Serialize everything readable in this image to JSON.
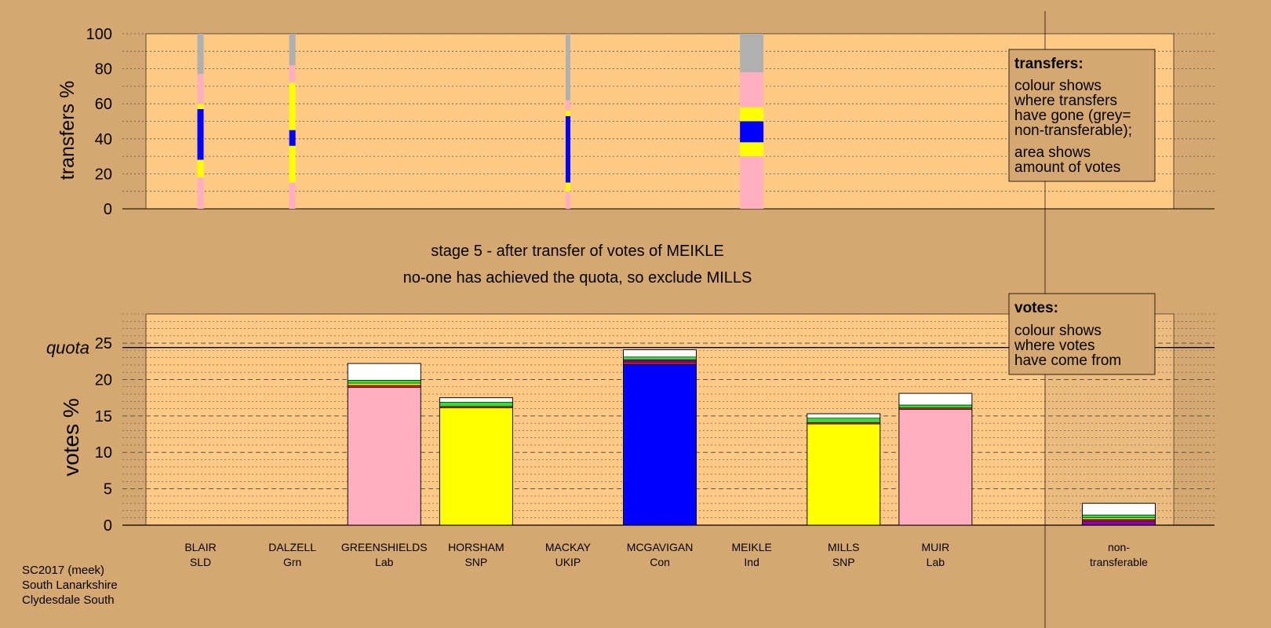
{
  "colors": {
    "background": "#d4a870",
    "plot_area": "#ffc986",
    "shade": "#c9a070",
    "pink": "#ffb0c0",
    "yellow": "#ffff00",
    "blue": "#0000ff",
    "grey": "#b0b0b0",
    "green": "#33dd33",
    "purple": "#8800aa",
    "red": "#dd2222",
    "white": "#ffffff"
  },
  "stage_title": "stage 5 - after transfer of votes of MEIKLE",
  "stage_note": "no-one has achieved the quota, so exclude MILLS",
  "source": {
    "line1": "SC2017 (meek)",
    "line2": "South Lanarkshire",
    "line3": "Clydesdale South"
  },
  "legends": {
    "transfers": {
      "title": "transfers:",
      "lines": [
        "colour shows",
        "where transfers",
        "have gone (grey=",
        "non-transferable);",
        "area shows",
        "amount of votes"
      ]
    },
    "votes": {
      "title": "votes:",
      "lines": [
        "colour shows",
        "where votes",
        "have come from"
      ]
    }
  },
  "chart_data": [
    {
      "type": "bar",
      "ylabel": "transfers %",
      "ylim": [
        0,
        100
      ],
      "yticks": [
        0,
        20,
        40,
        60,
        80,
        100
      ],
      "grid": true,
      "legend": "top-right",
      "columns": [
        {
          "candidate": "BLAIR",
          "segments": [
            {
              "color": "pink",
              "from": 0,
              "to": 18
            },
            {
              "color": "yellow",
              "from": 18,
              "to": 28
            },
            {
              "color": "blue",
              "from": 28,
              "to": 57
            },
            {
              "color": "yellow",
              "from": 57,
              "to": 60
            },
            {
              "color": "pink",
              "from": 60,
              "to": 77
            },
            {
              "color": "grey",
              "from": 77,
              "to": 100
            }
          ]
        },
        {
          "candidate": "DALZELL",
          "segments": [
            {
              "color": "pink",
              "from": 0,
              "to": 15
            },
            {
              "color": "yellow",
              "from": 15,
              "to": 36
            },
            {
              "color": "blue",
              "from": 36,
              "to": 45
            },
            {
              "color": "yellow",
              "from": 45,
              "to": 72
            },
            {
              "color": "pink",
              "from": 72,
              "to": 82
            },
            {
              "color": "grey",
              "from": 82,
              "to": 100
            }
          ]
        },
        {
          "candidate": "MACKAY",
          "segments": [
            {
              "color": "pink",
              "from": 0,
              "to": 10
            },
            {
              "color": "yellow",
              "from": 10,
              "to": 15
            },
            {
              "color": "blue",
              "from": 15,
              "to": 53
            },
            {
              "color": "yellow",
              "from": 53,
              "to": 56
            },
            {
              "color": "pink",
              "from": 56,
              "to": 62
            },
            {
              "color": "grey",
              "from": 62,
              "to": 100
            }
          ]
        },
        {
          "candidate": "MEIKLE",
          "segments": [
            {
              "color": "pink",
              "from": 0,
              "to": 30
            },
            {
              "color": "yellow",
              "from": 30,
              "to": 38
            },
            {
              "color": "blue",
              "from": 38,
              "to": 50
            },
            {
              "color": "yellow",
              "from": 50,
              "to": 58
            },
            {
              "color": "pink",
              "from": 58,
              "to": 78
            },
            {
              "color": "grey",
              "from": 78,
              "to": 100
            }
          ]
        }
      ]
    },
    {
      "type": "bar",
      "ylabel": "votes %",
      "ylim": [
        0,
        29
      ],
      "yticks": [
        0,
        5,
        10,
        15,
        20,
        25
      ],
      "grid": true,
      "quota": 24.4,
      "quota_label": "quota",
      "legend": "top-right",
      "candidates": [
        {
          "name": "BLAIR",
          "party": "SLD",
          "segments": []
        },
        {
          "name": "DALZELL",
          "party": "Grn",
          "segments": []
        },
        {
          "name": "GREENSHIELDS",
          "party": "Lab",
          "segments": [
            {
              "color": "pink",
              "value": 18.9
            },
            {
              "color": "red",
              "value": 0.3
            },
            {
              "color": "yellow",
              "value": 0.3
            },
            {
              "color": "green",
              "value": 0.4
            },
            {
              "color": "white",
              "value": 2.3
            }
          ]
        },
        {
          "name": "HORSHAM",
          "party": "SNP",
          "segments": [
            {
              "color": "yellow",
              "value": 16.1
            },
            {
              "color": "red",
              "value": 0.2
            },
            {
              "color": "green",
              "value": 0.6
            },
            {
              "color": "white",
              "value": 0.6
            }
          ]
        },
        {
          "name": "MACKAY",
          "party": "UKIP",
          "segments": []
        },
        {
          "name": "MCGAVIGAN",
          "party": "Con",
          "segments": [
            {
              "color": "blue",
              "value": 22.1
            },
            {
              "color": "red",
              "value": 0.3
            },
            {
              "color": "purple",
              "value": 0.3
            },
            {
              "color": "green",
              "value": 0.4
            },
            {
              "color": "white",
              "value": 1.0
            }
          ]
        },
        {
          "name": "MEIKLE",
          "party": "Ind",
          "segments": []
        },
        {
          "name": "MILLS",
          "party": "SNP",
          "segments": [
            {
              "color": "yellow",
              "value": 13.9
            },
            {
              "color": "red",
              "value": 0.2
            },
            {
              "color": "green",
              "value": 0.6
            },
            {
              "color": "white",
              "value": 0.6
            }
          ]
        },
        {
          "name": "MUIR",
          "party": "Lab",
          "segments": [
            {
              "color": "pink",
              "value": 15.9
            },
            {
              "color": "red",
              "value": 0.2
            },
            {
              "color": "green",
              "value": 0.4
            },
            {
              "color": "white",
              "value": 1.6
            }
          ]
        }
      ],
      "nontransferable": {
        "label1": "non-",
        "label2": "transferable",
        "segments": [
          {
            "color": "purple",
            "value": 0.6
          },
          {
            "color": "red",
            "value": 0.2
          },
          {
            "color": "yellow",
            "value": 0.2
          },
          {
            "color": "green",
            "value": 0.4
          },
          {
            "color": "white",
            "value": 1.6
          }
        ]
      }
    }
  ]
}
